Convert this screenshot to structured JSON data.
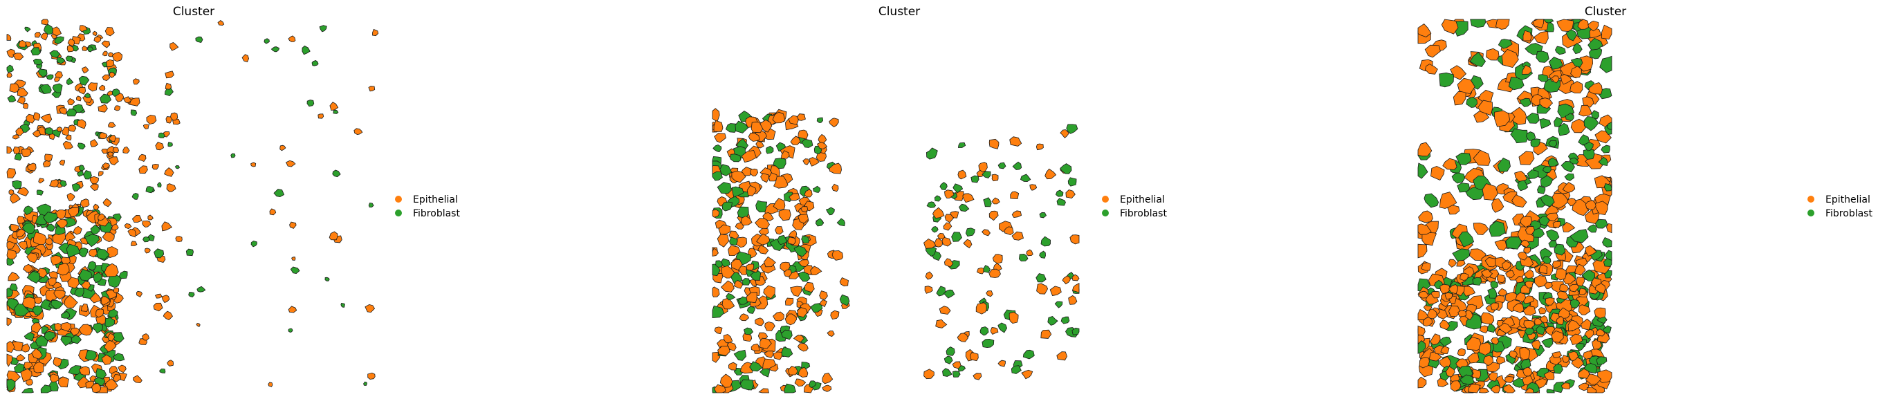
{
  "colors": {
    "Epithelial": "#ff7f0e",
    "Fibroblast": "#2ca02c",
    "edge": "#1a1a1a"
  },
  "chart_data": [
    {
      "type": "scatter",
      "title": "Cluster",
      "xlabel": "",
      "ylabel": "",
      "axes": "off",
      "grid": false,
      "legend": {
        "placement": "right",
        "marker": "circle",
        "entries": [
          "Epithelial",
          "Fibroblast"
        ]
      },
      "series": [
        {
          "name": "Epithelial",
          "description": "segmented cell polygons"
        },
        {
          "name": "Fibroblast",
          "description": "segmented cell polygons"
        }
      ]
    },
    {
      "type": "scatter",
      "title": "Cluster",
      "xlabel": "",
      "ylabel": "",
      "axes": "off",
      "grid": false,
      "legend": {
        "placement": "right",
        "marker": "circle",
        "entries": [
          "Epithelial",
          "Fibroblast"
        ]
      },
      "series": [
        {
          "name": "Epithelial",
          "description": "segmented cell polygons"
        },
        {
          "name": "Fibroblast",
          "description": "segmented cell polygons"
        }
      ]
    },
    {
      "type": "scatter",
      "title": "Cluster",
      "xlabel": "",
      "ylabel": "",
      "axes": "off",
      "grid": false,
      "legend": {
        "placement": "right",
        "marker": "circle",
        "entries": [
          "Epithelial",
          "Fibroblast"
        ]
      },
      "series": [
        {
          "name": "Epithelial",
          "description": "segmented cell polygons"
        },
        {
          "name": "Fibroblast",
          "description": "segmented cell polygons"
        }
      ]
    }
  ]
}
